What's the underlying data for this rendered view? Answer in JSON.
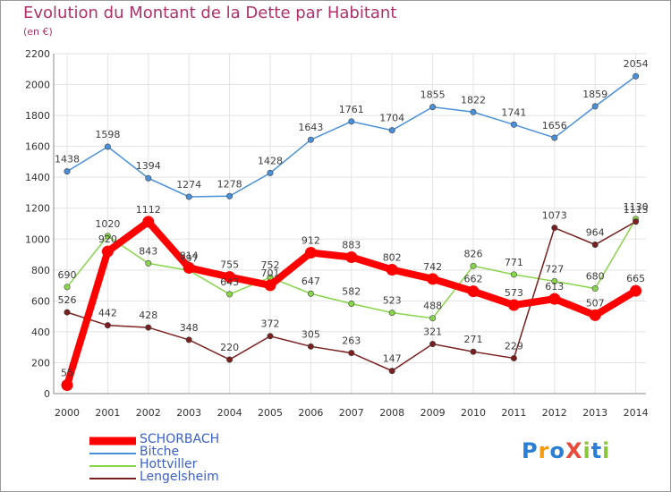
{
  "title": "Evolution du Montant de la Dette par Habitant",
  "subtitle": "(en €)",
  "logo": {
    "text": "ProXiti",
    "letters": [
      {
        "ch": "P",
        "color": "#2a7fd4"
      },
      {
        "ch": "r",
        "color": "#f39c12"
      },
      {
        "ch": "o",
        "color": "#2a7fd4"
      },
      {
        "ch": "X",
        "color": "#e74c3c"
      },
      {
        "ch": "i",
        "color": "#8cc63f"
      },
      {
        "ch": "t",
        "color": "#2a7fd4"
      },
      {
        "ch": "i",
        "color": "#8cc63f"
      }
    ]
  },
  "chart_data": {
    "type": "line",
    "x": [
      "2000",
      "2001",
      "2002",
      "2003",
      "2004",
      "2005",
      "2006",
      "2007",
      "2008",
      "2009",
      "2010",
      "2011",
      "2012",
      "2013",
      "2014"
    ],
    "ylim": [
      0,
      2200
    ],
    "yticks": [
      0,
      200,
      400,
      600,
      800,
      1000,
      1200,
      1400,
      1600,
      1800,
      2000,
      2200
    ],
    "grid": true,
    "series": [
      {
        "name": "SCHORBACH",
        "color": "#ff0000",
        "values": [
          55,
          920,
          1112,
          814,
          755,
          701,
          912,
          883,
          802,
          742,
          662,
          573,
          613,
          507,
          665
        ],
        "labels": [
          "55",
          "920",
          "1112",
          "814",
          "755",
          "701",
          "912",
          "883",
          "802",
          "742",
          "662",
          "573",
          "613",
          "507",
          "665"
        ],
        "bold": true
      },
      {
        "name": "Bitche",
        "color": "#4a90d9",
        "values": [
          1438,
          1598,
          1394,
          1274,
          1278,
          1428,
          1643,
          1761,
          1704,
          1855,
          1822,
          1741,
          1656,
          1859,
          2054
        ],
        "labels": [
          "1438",
          "1598",
          "1394",
          "1274",
          "1278",
          "1428",
          "1643",
          "1761",
          "1704",
          "1855",
          "1822",
          "1741",
          "1656",
          "1859",
          "2054"
        ],
        "bold": false
      },
      {
        "name": "Hottviller",
        "color": "#88d44a",
        "values": [
          690,
          1020,
          843,
          797,
          643,
          752,
          647,
          582,
          523,
          488,
          826,
          771,
          727,
          680,
          1130
        ],
        "labels": [
          "690",
          "1020",
          "843",
          "797",
          "643",
          "752",
          "647",
          "582",
          "523",
          "488",
          "826",
          "771",
          "727",
          "680",
          "1130"
        ],
        "bold": false
      },
      {
        "name": "Lengelsheim",
        "color": "#7a1f1f",
        "values": [
          526,
          442,
          428,
          348,
          220,
          372,
          305,
          263,
          147,
          321,
          271,
          229,
          1073,
          964,
          1113
        ],
        "labels": [
          "526",
          "442",
          "428",
          "348",
          "220",
          "372",
          "305",
          "263",
          "147",
          "321",
          "271",
          "229",
          "1073",
          "964",
          "1113"
        ],
        "bold": false
      }
    ]
  }
}
